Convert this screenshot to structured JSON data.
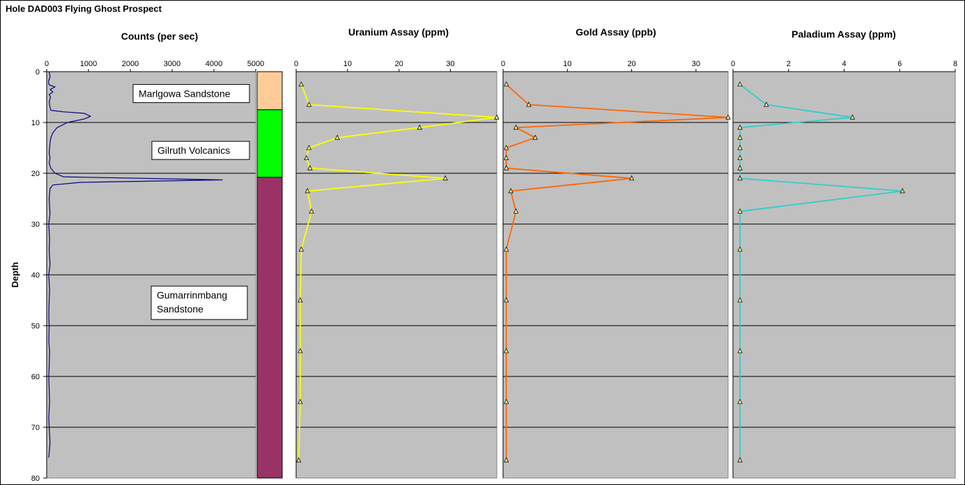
{
  "hole_title": "Hole DAD003 Flying Ghost Prospect",
  "y_axis_label": "Depth",
  "colors": {
    "plot_bg": "#c0c0c0",
    "counts_line": "#000080",
    "uranium_line": "#ffff00",
    "gold_line": "#ff6600",
    "palladium_line": "#33cccc",
    "marker_fill": "#ffff99"
  },
  "lithology": [
    {
      "name": "Marlgowa Sandstone",
      "top": 0,
      "bottom": 7.5,
      "color": "#ffcc99"
    },
    {
      "name": "Gilruth Volcanics",
      "top": 7.5,
      "bottom": 20.8,
      "color": "#00ff00"
    },
    {
      "name": "Gumarrinmbang Sandstone",
      "top": 20.8,
      "bottom": 80,
      "color": "#993366"
    }
  ],
  "lithology_labels": [
    {
      "lines": [
        "Marlgowa Sandstone"
      ],
      "depth": 4.3
    },
    {
      "lines": [
        "Gilruth Volcanics"
      ],
      "depth": 15.5
    },
    {
      "lines": [
        "Gumarrinmbang",
        "Sandstone"
      ],
      "depth": 45.5
    }
  ],
  "chart_data": [
    {
      "type": "line",
      "title": "Counts (per sec)",
      "ylabel": "Depth",
      "xlim": [
        0,
        5000
      ],
      "ylim": [
        0,
        80
      ],
      "x_ticks": [
        "0",
        "1000",
        "2000",
        "3000",
        "4000",
        "5000"
      ],
      "y_ticks": [
        "0",
        "10",
        "20",
        "30",
        "40",
        "50",
        "60",
        "70",
        "80"
      ],
      "grid": "horizontal every 10",
      "series": [
        {
          "x": [
            60,
            80,
            40,
            60,
            200,
            80,
            150,
            60,
            90,
            60,
            80,
            100,
            400,
            900,
            1050,
            900,
            500,
            250,
            150,
            100,
            80,
            70,
            60,
            80,
            60,
            100,
            200,
            400,
            4200,
            800,
            150,
            80,
            60,
            80,
            50,
            70,
            60,
            80,
            50,
            70,
            60,
            50,
            60,
            50,
            70,
            60,
            50,
            70,
            50,
            60,
            80,
            50
          ],
          "y": [
            0,
            1,
            2,
            2.6,
            3,
            3.5,
            4,
            4.5,
            5,
            6,
            7,
            7.6,
            7.9,
            8.2,
            8.8,
            9.3,
            10,
            11,
            12,
            13,
            14,
            15,
            16,
            17,
            18,
            19,
            20,
            20.7,
            21.3,
            21.8,
            22.3,
            23,
            25,
            28,
            30,
            33,
            35,
            38,
            40,
            43,
            45,
            48,
            50,
            53,
            55,
            58,
            60,
            65,
            68,
            70,
            73,
            76
          ]
        }
      ]
    },
    {
      "type": "line",
      "title": "Uranium Assay (ppm)",
      "xlim": [
        0,
        39
      ],
      "ylim": [
        0,
        80
      ],
      "x_ticks": [
        "0",
        "10",
        "20",
        "30"
      ],
      "series": [
        {
          "x": [
            1,
            2.5,
            39,
            24,
            8,
            2.5,
            2,
            2.7,
            29,
            2.2,
            3,
            1,
            0.8,
            0.8,
            0.8,
            0.5
          ],
          "y": [
            2.5,
            6.5,
            9,
            11,
            13,
            15,
            17,
            19,
            21,
            23.5,
            27.5,
            35,
            45,
            55,
            65,
            76.5
          ]
        }
      ]
    },
    {
      "type": "line",
      "title": "Gold Assay (ppb)",
      "xlim": [
        0,
        35
      ],
      "ylim": [
        0,
        80
      ],
      "x_ticks": [
        "0",
        "10",
        "20",
        "30"
      ],
      "series": [
        {
          "x": [
            0.5,
            4,
            35,
            2,
            5,
            0.5,
            0.5,
            0.5,
            20,
            1.2,
            2,
            0.5,
            0.5,
            0.5,
            0.5,
            0.5
          ],
          "y": [
            2.5,
            6.5,
            9,
            11,
            13,
            15,
            17,
            19,
            21,
            23.5,
            27.5,
            35,
            45,
            55,
            65,
            76.5
          ]
        }
      ]
    },
    {
      "type": "line",
      "title": "Paladium Assay (ppm)",
      "xlim": [
        0,
        8
      ],
      "ylim": [
        0,
        80
      ],
      "x_ticks": [
        "0",
        "2",
        "4",
        "6",
        "8"
      ],
      "series": [
        {
          "x": [
            0.25,
            1.2,
            4.3,
            0.25,
            0.25,
            0.25,
            0.25,
            0.25,
            0.25,
            6.1,
            0.25,
            0.25,
            0.25,
            0.25,
            0.25,
            0.25
          ],
          "y": [
            2.5,
            6.5,
            9,
            11,
            13,
            15,
            17,
            19,
            21,
            23.5,
            27.5,
            35,
            45,
            55,
            65,
            76.5
          ]
        }
      ]
    }
  ]
}
